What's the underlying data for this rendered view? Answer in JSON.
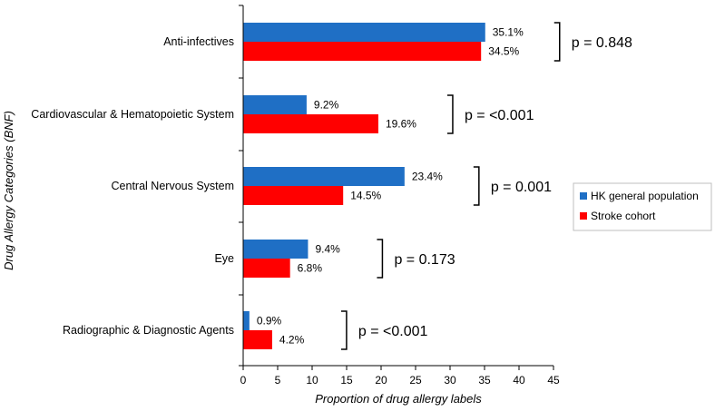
{
  "chart_data": {
    "type": "bar",
    "orientation": "horizontal",
    "categories": [
      "Anti-infectives",
      "Cardiovascular & Hematopoietic System",
      "Central Nervous System",
      "Eye",
      "Radiographic & Diagnostic Agents"
    ],
    "series": [
      {
        "name": "HK general population",
        "color": "#1f6fc5",
        "values": [
          35.1,
          9.2,
          23.4,
          9.4,
          0.9
        ],
        "labels": [
          "35.1%",
          "9.2%",
          "23.4%",
          "9.4%",
          "0.9%"
        ]
      },
      {
        "name": "Stroke cohort",
        "color": "#ff0000",
        "values": [
          34.5,
          19.6,
          14.5,
          6.8,
          4.2
        ],
        "labels": [
          "34.5%",
          "19.6%",
          "14.5%",
          "6.8%",
          "4.2%"
        ]
      }
    ],
    "p_values": [
      "p = 0.848",
      "p = <0.001",
      "p = 0.001",
      "p = 0.173",
      "p = <0.001"
    ],
    "xlabel": "Proportion of drug allergy labels",
    "ylabel": "Drug Allergy Categories (BNF)",
    "xlim": [
      0,
      45
    ],
    "xticks": [
      "0",
      "5",
      "10",
      "15",
      "20",
      "25",
      "30",
      "35",
      "40",
      "45"
    ],
    "legend_position": "right",
    "grid": false
  }
}
